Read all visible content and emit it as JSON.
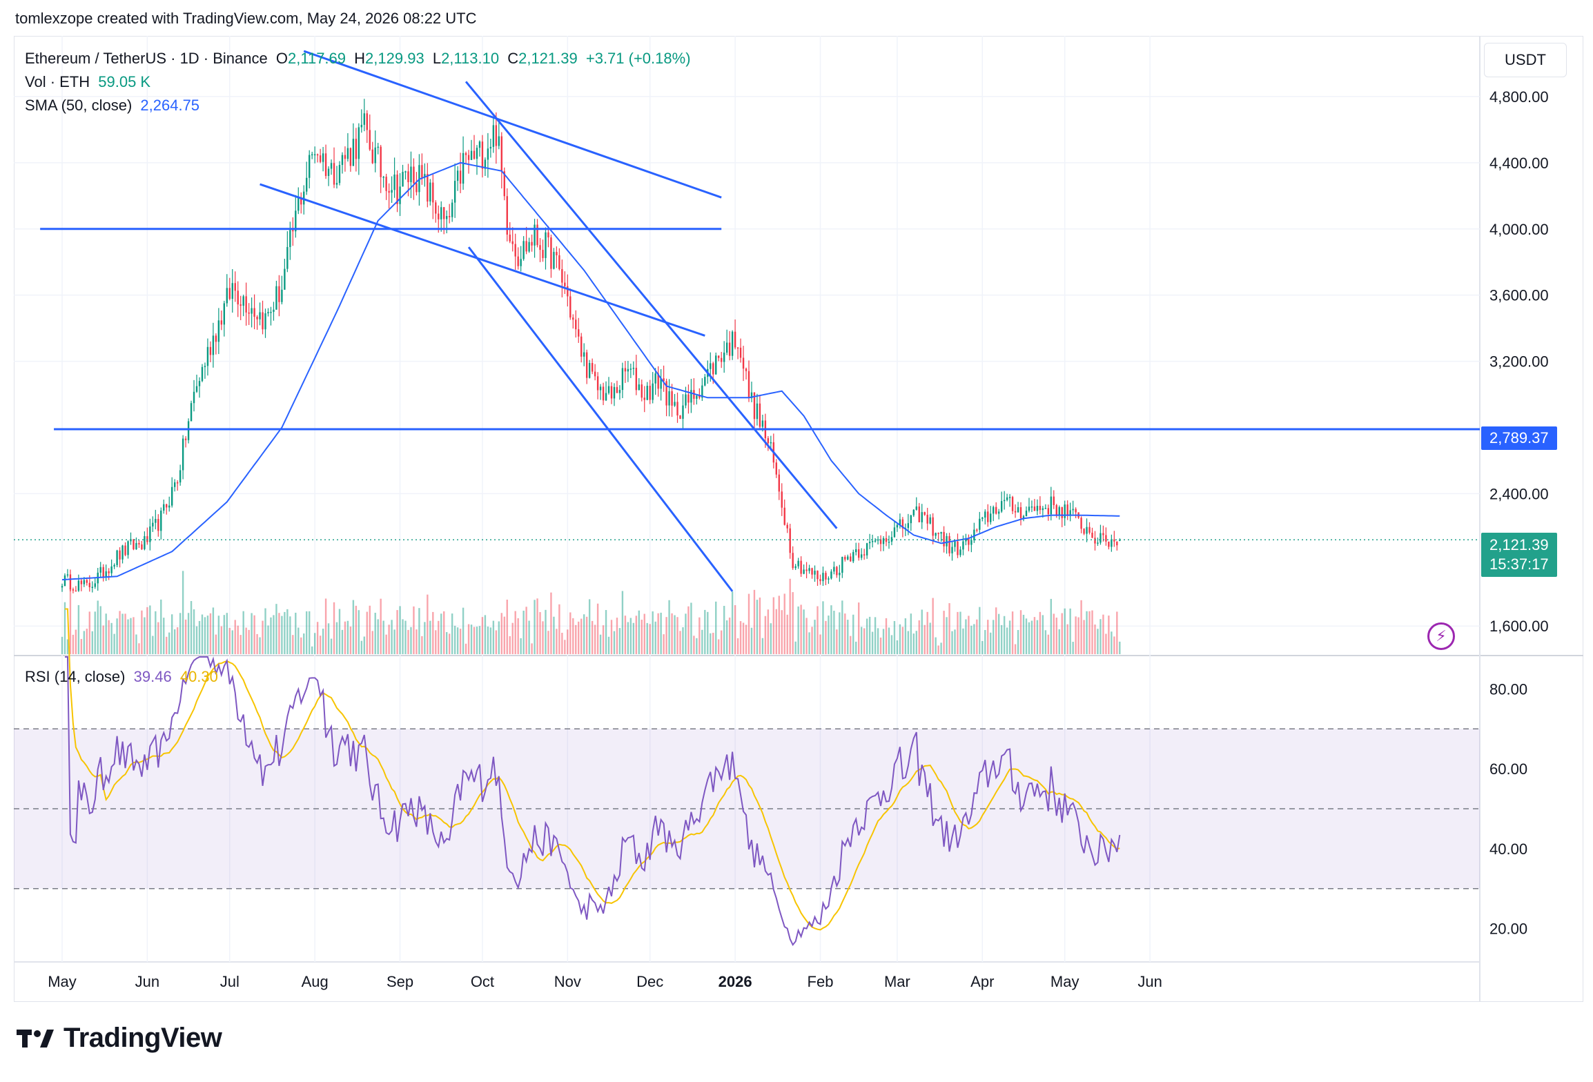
{
  "header": {
    "text": "tomlexzope created with TradingView.com, May 24, 2026 08:22 UTC"
  },
  "legend": {
    "symbol": "Ethereum / TetherUS · 1D · Binance",
    "open_label": "O",
    "open": "2,117.69",
    "high_label": "H",
    "high": "2,129.93",
    "low_label": "L",
    "low": "2,113.10",
    "close_label": "C",
    "close": "2,121.39",
    "change": "+3.71 (+0.18%)",
    "vol_label": "Vol · ETH",
    "vol": "59.05 K",
    "sma_label": "SMA (50, close)",
    "sma": "2,264.75",
    "rsi_label": "RSI (14, close)",
    "rsi": "39.46",
    "rsi_ma": "40.30"
  },
  "currency": "USDT",
  "price_tags": {
    "line": "2,789.37",
    "last": "2,121.39",
    "countdown": "15:37:17"
  },
  "logo_text": "TradingView",
  "colors": {
    "up": "#089981",
    "down": "#f23645",
    "sma": "#2962ff",
    "trend": "#2962ff",
    "rsi": "#7e57c2",
    "rsi_ma": "#f7c400"
  },
  "chart_data": {
    "type": "candlestick",
    "price_axis": {
      "ticks": [
        "4,800.00",
        "4,400.00",
        "4,000.00",
        "3,600.00",
        "3,200.00",
        "2,400.00",
        "1,600.00"
      ],
      "values": [
        4800,
        4400,
        4000,
        3600,
        3200,
        2400,
        1600
      ],
      "range": [
        1430,
        5150
      ]
    },
    "rsi_axis": {
      "ticks": [
        "80.00",
        "60.00",
        "40.00",
        "20.00"
      ],
      "values": [
        80,
        60,
        40,
        20
      ],
      "range": [
        12,
        88
      ],
      "bands": [
        70,
        50,
        30
      ]
    },
    "time_axis": {
      "labels": [
        "May",
        "Jun",
        "Jul",
        "Aug",
        "Sep",
        "Oct",
        "Nov",
        "Dec",
        "2026",
        "Feb",
        "Mar",
        "Apr",
        "May",
        "Jun"
      ],
      "days": [
        0,
        31,
        61,
        92,
        123,
        153,
        184,
        214,
        245,
        276,
        304,
        335,
        365,
        396
      ]
    },
    "anchors": [
      [
        0,
        1880
      ],
      [
        4,
        1860
      ],
      [
        9,
        1835
      ],
      [
        14,
        1910
      ],
      [
        20,
        2020
      ],
      [
        25,
        2080
      ],
      [
        30,
        2100
      ],
      [
        36,
        2250
      ],
      [
        42,
        2500
      ],
      [
        48,
        3000
      ],
      [
        55,
        3350
      ],
      [
        62,
        3650
      ],
      [
        68,
        3550
      ],
      [
        74,
        3450
      ],
      [
        80,
        3650
      ],
      [
        86,
        4150
      ],
      [
        92,
        4500
      ],
      [
        98,
        4350
      ],
      [
        104,
        4450
      ],
      [
        110,
        4600
      ],
      [
        116,
        4350
      ],
      [
        122,
        4250
      ],
      [
        128,
        4350
      ],
      [
        134,
        4200
      ],
      [
        140,
        4000
      ],
      [
        146,
        4400
      ],
      [
        152,
        4450
      ],
      [
        158,
        4600
      ],
      [
        162,
        4050
      ],
      [
        166,
        3850
      ],
      [
        172,
        3950
      ],
      [
        178,
        3850
      ],
      [
        183,
        3650
      ],
      [
        188,
        3300
      ],
      [
        194,
        3050
      ],
      [
        200,
        2980
      ],
      [
        206,
        3150
      ],
      [
        212,
        3000
      ],
      [
        218,
        3100
      ],
      [
        222,
        2900
      ],
      [
        228,
        2950
      ],
      [
        234,
        3100
      ],
      [
        240,
        3250
      ],
      [
        246,
        3350
      ],
      [
        250,
        3000
      ],
      [
        255,
        2800
      ],
      [
        258,
        2650
      ],
      [
        262,
        2350
      ],
      [
        266,
        2000
      ],
      [
        270,
        1950
      ],
      [
        276,
        1880
      ],
      [
        282,
        1950
      ],
      [
        288,
        2050
      ],
      [
        294,
        2080
      ],
      [
        300,
        2150
      ],
      [
        306,
        2200
      ],
      [
        312,
        2280
      ],
      [
        318,
        2180
      ],
      [
        324,
        2060
      ],
      [
        330,
        2100
      ],
      [
        336,
        2250
      ],
      [
        342,
        2350
      ],
      [
        348,
        2300
      ],
      [
        354,
        2310
      ],
      [
        360,
        2330
      ],
      [
        366,
        2290
      ],
      [
        372,
        2200
      ],
      [
        378,
        2110
      ],
      [
        385,
        2121
      ]
    ],
    "sma_anchors": [
      [
        0,
        1880
      ],
      [
        20,
        1900
      ],
      [
        40,
        2050
      ],
      [
        60,
        2350
      ],
      [
        80,
        2800
      ],
      [
        100,
        3500
      ],
      [
        115,
        4050
      ],
      [
        130,
        4300
      ],
      [
        145,
        4400
      ],
      [
        160,
        4350
      ],
      [
        175,
        4050
      ],
      [
        190,
        3750
      ],
      [
        205,
        3400
      ],
      [
        220,
        3050
      ],
      [
        235,
        2980
      ],
      [
        250,
        2980
      ],
      [
        262,
        3020
      ],
      [
        270,
        2870
      ],
      [
        280,
        2600
      ],
      [
        290,
        2400
      ],
      [
        300,
        2270
      ],
      [
        310,
        2150
      ],
      [
        320,
        2100
      ],
      [
        330,
        2130
      ],
      [
        340,
        2200
      ],
      [
        350,
        2250
      ],
      [
        360,
        2270
      ],
      [
        370,
        2270
      ],
      [
        385,
        2265
      ]
    ],
    "hlines": [
      {
        "price": 4000,
        "from_day": -8,
        "to_day": 240
      },
      {
        "price": 2789.37,
        "from_day": -3,
        "to_day": 396
      }
    ],
    "trendlines": [
      {
        "d1": 88,
        "p1": 5075,
        "d2": 240,
        "p2": 4190
      },
      {
        "d1": 72,
        "p1": 4270,
        "d2": 234,
        "p2": 3355
      },
      {
        "d1": 147,
        "p1": 4890,
        "d2": 282,
        "p2": 2190
      },
      {
        "d1": 148,
        "p1": 3890,
        "d2": 244,
        "p2": 1810
      }
    ],
    "last": {
      "open": 2117.69,
      "high": 2129.93,
      "low": 2113.1,
      "close": 2121.39
    }
  }
}
